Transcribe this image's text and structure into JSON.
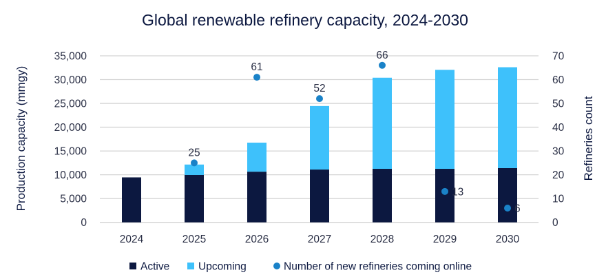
{
  "chart_data": {
    "type": "bar",
    "subtype": "stacked-bar-with-scatter-secondary-axis",
    "title": "Global renewable refinery capacity, 2024-2030",
    "categories": [
      "2024",
      "2025",
      "2026",
      "2027",
      "2028",
      "2029",
      "2030"
    ],
    "series": [
      {
        "name": "Active",
        "kind": "bar",
        "axis": "left",
        "color": "#0c1840",
        "values": [
          9450,
          9950,
          10650,
          11100,
          11250,
          11250,
          11400
        ]
      },
      {
        "name": "Upcoming",
        "kind": "bar",
        "axis": "left",
        "color": "#3ec1fb",
        "values": [
          0,
          2200,
          6100,
          13350,
          19150,
          20800,
          21200
        ]
      },
      {
        "name": "Number of new refineries coming online",
        "kind": "scatter",
        "axis": "right",
        "color": "#1a82c8",
        "values": [
          null,
          25,
          61,
          52,
          66,
          13,
          6
        ],
        "labels": [
          "",
          "25",
          "61",
          "52",
          "66",
          "13",
          "6"
        ]
      }
    ],
    "ylabel": "Production capacity (mmgy)",
    "y2label": "Refineries count",
    "xlabel": "",
    "ylim": [
      0,
      35000
    ],
    "y2lim": [
      0,
      70
    ],
    "yticks": [
      "0",
      "5,000",
      "10,000",
      "15,000",
      "20,000",
      "25,000",
      "30,000",
      "35,000"
    ],
    "y2ticks": [
      "0",
      "10",
      "20",
      "30",
      "40",
      "50",
      "60",
      "70"
    ],
    "grid": true,
    "legend_position": "bottom"
  }
}
